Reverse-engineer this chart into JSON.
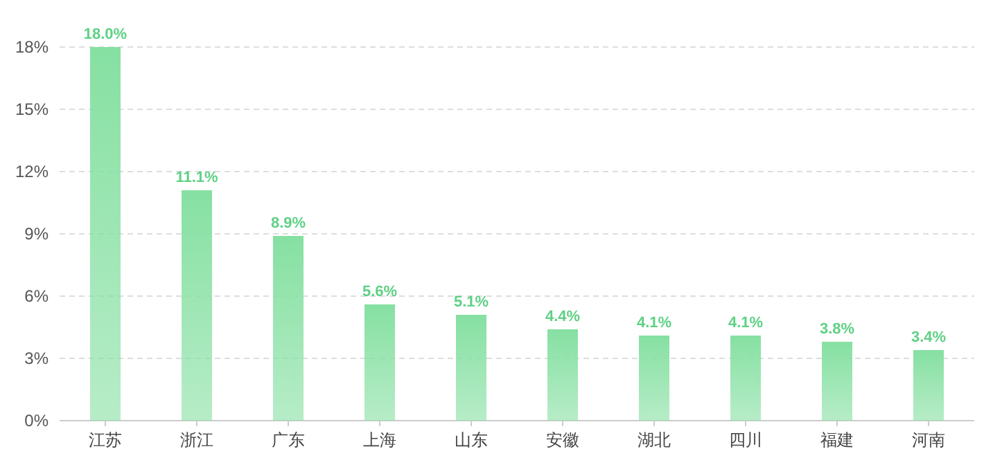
{
  "chart_data": {
    "type": "bar",
    "categories": [
      "江苏",
      "浙江",
      "广东",
      "上海",
      "山东",
      "安徽",
      "湖北",
      "四川",
      "福建",
      "河南"
    ],
    "values": [
      18.0,
      11.1,
      8.9,
      5.6,
      5.1,
      4.4,
      4.1,
      4.1,
      3.8,
      3.4
    ],
    "value_labels": [
      "18.0%",
      "11.1%",
      "8.9%",
      "5.6%",
      "5.1%",
      "4.4%",
      "4.1%",
      "4.1%",
      "3.8%",
      "3.4%"
    ],
    "color": "#86e0a2",
    "ylim": [
      0,
      18
    ],
    "yticks": [
      {
        "value": 0,
        "label": "0%"
      },
      {
        "value": 3,
        "label": "3%"
      },
      {
        "value": 6,
        "label": "6%"
      },
      {
        "value": 9,
        "label": "9%"
      },
      {
        "value": 12,
        "label": "12%"
      },
      {
        "value": 15,
        "label": "15%"
      },
      {
        "value": 18,
        "label": "18%"
      }
    ],
    "grid": "y"
  }
}
